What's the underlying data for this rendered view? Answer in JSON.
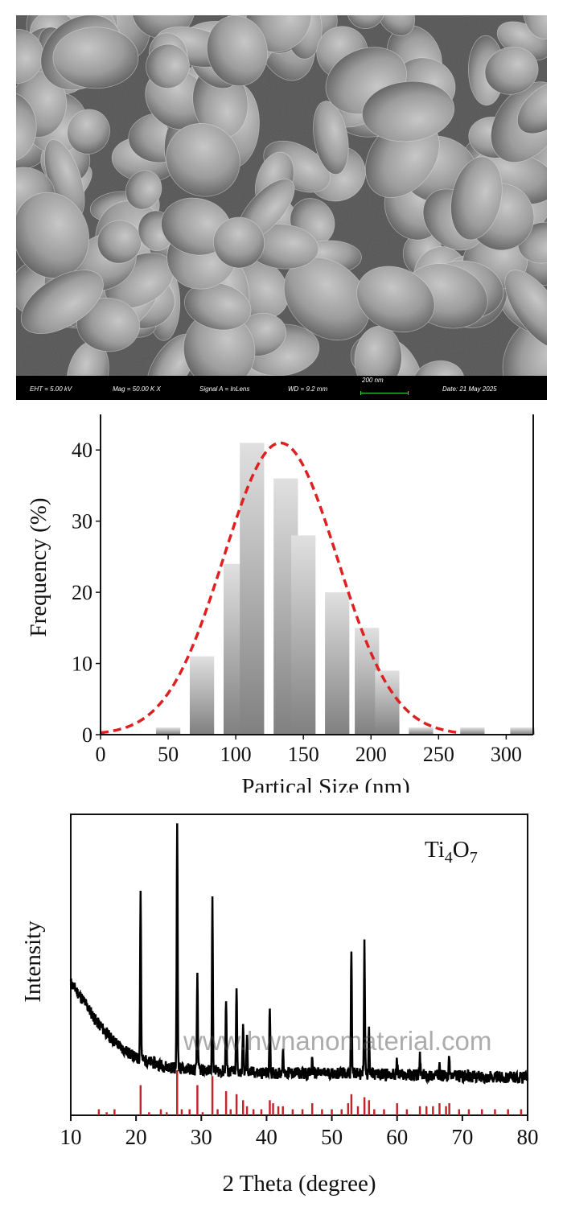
{
  "sem_panel": {
    "fields": [
      {
        "label": "EHT",
        "value": "5.00 kV",
        "text": "EHT =  5.00 kV"
      },
      {
        "label": "Mag",
        "value": "50.00 K X",
        "text": "Mag =  50.00 K X"
      },
      {
        "label": "Signal A",
        "value": "InLens",
        "text": "Signal A = InLens"
      },
      {
        "label": "WD",
        "value": "9.2 mm",
        "text": "WD =  9.2 mm"
      },
      {
        "label": "Date",
        "value": "21 May 2025",
        "text": "Date: 21 May 2025"
      }
    ],
    "scale_bar_text": "200 nm",
    "scale_bar_color": "#2fd23a"
  },
  "chart_data": [
    {
      "type": "bar",
      "xlabel": "Partical Size (nm)",
      "ylabel": "Frequency (%)",
      "xlim": [
        0,
        320
      ],
      "ylim": [
        0,
        45
      ],
      "xticks": [
        0,
        50,
        100,
        150,
        200,
        250,
        300
      ],
      "yticks": [
        0,
        10,
        20,
        30,
        40
      ],
      "bar_width": 18,
      "bars": [
        {
          "x": 50,
          "value": 1
        },
        {
          "x": 75,
          "value": 11
        },
        {
          "x": 100,
          "value": 24
        },
        {
          "x": 112,
          "value": 41
        },
        {
          "x": 137,
          "value": 36
        },
        {
          "x": 150,
          "value": 28
        },
        {
          "x": 175,
          "value": 20
        },
        {
          "x": 197,
          "value": 15
        },
        {
          "x": 212,
          "value": 9
        },
        {
          "x": 237,
          "value": 1
        },
        {
          "x": 275,
          "value": 1
        },
        {
          "x": 312,
          "value": 1
        }
      ],
      "fit": {
        "type": "gaussian",
        "peak_x": 133,
        "peak_y": 41,
        "sigma": 42,
        "color": "#e02020",
        "style": "dashed"
      },
      "bar_color_top": "#e0e0e0",
      "bar_color_bottom": "#808080"
    },
    {
      "type": "line",
      "xlabel": "2 Theta (degree)",
      "ylabel": "Intensity",
      "xlim": [
        10,
        80
      ],
      "xticks": [
        10,
        20,
        30,
        40,
        50,
        60,
        70,
        80
      ],
      "ylim": [
        0,
        100
      ],
      "yticks": [],
      "legend": "Ti4O7",
      "legend_main": "Ti",
      "legend_sub1": "4",
      "legend_mid": "O",
      "legend_sub2": "7",
      "legend_color": "#c0272d",
      "pattern_color": "#000000",
      "reference_color": "#c0272d",
      "background": [
        [
          10,
          44
        ],
        [
          12,
          38
        ],
        [
          14,
          31
        ],
        [
          16,
          26
        ],
        [
          18,
          22
        ],
        [
          20,
          19
        ],
        [
          25,
          16
        ],
        [
          30,
          15
        ],
        [
          40,
          14
        ],
        [
          50,
          14
        ],
        [
          60,
          13.5
        ],
        [
          70,
          13
        ],
        [
          80,
          12.5
        ]
      ],
      "peaks": [
        [
          20.7,
          56
        ],
        [
          26.3,
          82
        ],
        [
          29.4,
          32
        ],
        [
          31.7,
          56
        ],
        [
          33.8,
          24
        ],
        [
          35.4,
          28
        ],
        [
          36.4,
          16
        ],
        [
          37.0,
          12
        ],
        [
          40.5,
          22
        ],
        [
          42.5,
          8
        ],
        [
          47.0,
          5
        ],
        [
          53.0,
          42
        ],
        [
          55.0,
          43
        ],
        [
          55.7,
          16
        ],
        [
          60.0,
          5
        ],
        [
          63.5,
          6
        ],
        [
          66.5,
          6
        ],
        [
          68.0,
          6
        ]
      ],
      "reference_peaks": [
        [
          14.3,
          2
        ],
        [
          15.5,
          1
        ],
        [
          16.7,
          2
        ],
        [
          20.7,
          10
        ],
        [
          22.0,
          1
        ],
        [
          23.8,
          2
        ],
        [
          24.7,
          1
        ],
        [
          26.3,
          15
        ],
        [
          27.0,
          2
        ],
        [
          28.2,
          2
        ],
        [
          29.4,
          10
        ],
        [
          30.2,
          1
        ],
        [
          31.7,
          13
        ],
        [
          32.5,
          2
        ],
        [
          33.8,
          8
        ],
        [
          34.5,
          2
        ],
        [
          35.4,
          7
        ],
        [
          36.4,
          5
        ],
        [
          37.0,
          3
        ],
        [
          38.0,
          2
        ],
        [
          39.2,
          2
        ],
        [
          40.5,
          5
        ],
        [
          41.0,
          4
        ],
        [
          41.8,
          3
        ],
        [
          42.5,
          3
        ],
        [
          44.0,
          2
        ],
        [
          45.5,
          2
        ],
        [
          47.0,
          4
        ],
        [
          48.5,
          2
        ],
        [
          50.0,
          2
        ],
        [
          51.5,
          2
        ],
        [
          52.5,
          4
        ],
        [
          53.0,
          7
        ],
        [
          54.0,
          3
        ],
        [
          55.0,
          6
        ],
        [
          55.7,
          5
        ],
        [
          56.5,
          2
        ],
        [
          58.0,
          2
        ],
        [
          60.0,
          4
        ],
        [
          61.5,
          2
        ],
        [
          63.5,
          3
        ],
        [
          64.5,
          3
        ],
        [
          65.5,
          3
        ],
        [
          66.5,
          4
        ],
        [
          67.5,
          3
        ],
        [
          68.0,
          4
        ],
        [
          69.5,
          2
        ],
        [
          71.0,
          2
        ],
        [
          73.0,
          2
        ],
        [
          75.0,
          2
        ],
        [
          77.0,
          2
        ],
        [
          79.0,
          2
        ]
      ]
    }
  ],
  "watermark": "www.hwnanomaterial.com"
}
